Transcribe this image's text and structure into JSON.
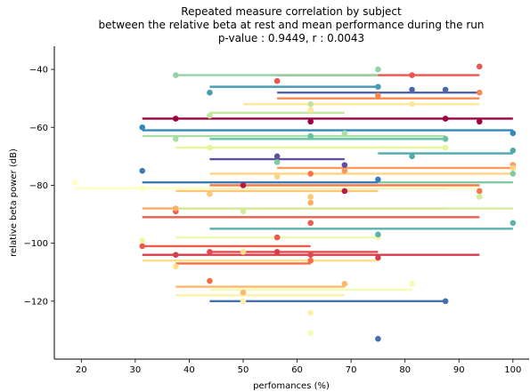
{
  "chart_data": {
    "type": "scatter",
    "title_lines": [
      "Repeated measure correlation by subject",
      "between the relative beta at rest and mean performance during the run",
      "p-value : 0.9449, r : 0.0043"
    ],
    "xlabel": "perfomances (%)",
    "ylabel": "relative beta power (dB)",
    "xlim": [
      15,
      103
    ],
    "ylim": [
      -140,
      -32
    ],
    "xticks": [
      20,
      30,
      40,
      50,
      60,
      70,
      80,
      90,
      100
    ],
    "yticks": [
      -120,
      -100,
      -80,
      -60,
      -40
    ],
    "grid": false,
    "legend": "none",
    "palette": "Spectral",
    "series": [
      {
        "color": "#9e0142",
        "line": {
          "x": [
            31.3,
            100
          ],
          "y": [
            -57,
            -57
          ]
        },
        "points": [
          {
            "x": 37.5,
            "y": -57
          },
          {
            "x": 62.5,
            "y": -58
          },
          {
            "x": 87.5,
            "y": -57
          },
          {
            "x": 93.8,
            "y": -58
          }
        ]
      },
      {
        "color": "#b71a46",
        "line": {
          "x": [
            43.8,
            87.5
          ],
          "y": [
            -81,
            -81
          ]
        },
        "points": [
          {
            "x": 50,
            "y": -80
          },
          {
            "x": 68.8,
            "y": -82
          }
        ]
      },
      {
        "color": "#d53e4f",
        "line": {
          "x": [
            31.3,
            93.8
          ],
          "y": [
            -104,
            -104
          ]
        },
        "points": [
          {
            "x": 37.5,
            "y": -104
          },
          {
            "x": 56.3,
            "y": -103
          },
          {
            "x": 75,
            "y": -105
          }
        ]
      },
      {
        "color": "#e04a4d",
        "line": {
          "x": [
            43.8,
            75
          ],
          "y": [
            -103,
            -103
          ]
        },
        "points": [
          {
            "x": 43.8,
            "y": -103
          },
          {
            "x": 62.5,
            "y": -104
          }
        ]
      },
      {
        "color": "#e8564d",
        "line": {
          "x": [
            56.3,
            93.8
          ],
          "y": [
            -42,
            -42
          ]
        },
        "points": [
          {
            "x": 56.3,
            "y": -44
          },
          {
            "x": 81.3,
            "y": -42
          },
          {
            "x": 93.8,
            "y": -39
          }
        ]
      },
      {
        "color": "#ea5e4d",
        "line": {
          "x": [
            31.3,
            93.8
          ],
          "y": [
            -91,
            -91
          ]
        },
        "points": [
          {
            "x": 37.5,
            "y": -89
          },
          {
            "x": 62.5,
            "y": -93
          }
        ]
      },
      {
        "color": "#e95c47",
        "line": {
          "x": [
            31.3,
            62.5
          ],
          "y": [
            -101,
            -101
          ]
        },
        "points": [
          {
            "x": 31.3,
            "y": -101
          },
          {
            "x": 56.3,
            "y": -98
          }
        ]
      },
      {
        "color": "#f46d43",
        "line": {
          "x": [
            37.5,
            62.5
          ],
          "y": [
            -107,
            -107
          ]
        },
        "points": [
          {
            "x": 43.8,
            "y": -113
          },
          {
            "x": 62.5,
            "y": -106
          }
        ]
      },
      {
        "color": "#f57748",
        "line": {
          "x": [
            43.8,
            93.8
          ],
          "y": [
            -80,
            -80
          ]
        },
        "points": [
          {
            "x": 62.5,
            "y": -76
          },
          {
            "x": 93.8,
            "y": -82
          }
        ]
      },
      {
        "color": "#f7864f",
        "line": {
          "x": [
            56.3,
            93.8
          ],
          "y": [
            -50,
            -50
          ]
        },
        "points": [
          {
            "x": 75,
            "y": -49
          },
          {
            "x": 93.8,
            "y": -48
          }
        ]
      },
      {
        "color": "#fb9a59",
        "line": {
          "x": [
            56.3,
            100
          ],
          "y": [
            -74,
            -74
          ]
        },
        "points": [
          {
            "x": 68.8,
            "y": -75
          },
          {
            "x": 100,
            "y": -73
          }
        ]
      },
      {
        "color": "#fdae61",
        "line": {
          "x": [
            31.3,
            87.5
          ],
          "y": [
            -88,
            -88
          ]
        },
        "points": [
          {
            "x": 37.5,
            "y": -88
          },
          {
            "x": 62.5,
            "y": -86
          }
        ]
      },
      {
        "color": "#fdb96a",
        "line": {
          "x": [
            37.5,
            68.8
          ],
          "y": [
            -115,
            -115
          ]
        },
        "points": [
          {
            "x": 50,
            "y": -117
          },
          {
            "x": 68.8,
            "y": -114
          }
        ]
      },
      {
        "color": "#fec877",
        "line": {
          "x": [
            37.5,
            75
          ],
          "y": [
            -82,
            -82
          ]
        },
        "points": [
          {
            "x": 43.8,
            "y": -83
          },
          {
            "x": 62.5,
            "y": -84
          }
        ]
      },
      {
        "color": "#fdd481",
        "line": {
          "x": [
            43.8,
            100
          ],
          "y": [
            -76,
            -76
          ]
        },
        "points": [
          {
            "x": 56.3,
            "y": -77
          },
          {
            "x": 100,
            "y": -74
          }
        ]
      },
      {
        "color": "#fee08b",
        "line": {
          "x": [
            31.3,
            75
          ],
          "y": [
            -106,
            -106
          ]
        },
        "points": [
          {
            "x": 37.5,
            "y": -108
          },
          {
            "x": 50,
            "y": -103
          }
        ]
      },
      {
        "color": "#fee89a",
        "line": {
          "x": [
            50,
            93.8
          ],
          "y": [
            -52,
            -52
          ]
        },
        "points": [
          {
            "x": 62.5,
            "y": -54
          },
          {
            "x": 81.3,
            "y": -52
          }
        ]
      },
      {
        "color": "#fff0a8",
        "line": {
          "x": [
            37.5,
            68.8
          ],
          "y": [
            -118,
            -118
          ]
        },
        "points": [
          {
            "x": 50,
            "y": -120
          },
          {
            "x": 62.5,
            "y": -124
          }
        ]
      },
      {
        "color": "#ffffbf",
        "line": {
          "x": [
            18.8,
            93.8
          ],
          "y": [
            -81,
            -81
          ]
        },
        "points": [
          {
            "x": 18.8,
            "y": -79
          },
          {
            "x": 31.3,
            "y": -81
          }
        ]
      },
      {
        "color": "#f6fbb2",
        "line": {
          "x": [
            43.8,
            81.3
          ],
          "y": [
            -116,
            -116
          ]
        },
        "points": [
          {
            "x": 62.5,
            "y": -131
          },
          {
            "x": 81.3,
            "y": -114
          }
        ]
      },
      {
        "color": "#eef8a8",
        "line": {
          "x": [
            37.5,
            75
          ],
          "y": [
            -98,
            -98
          ]
        },
        "points": [
          {
            "x": 31.3,
            "y": -99
          },
          {
            "x": 75,
            "y": -98
          }
        ]
      },
      {
        "color": "#e6f598",
        "line": {
          "x": [
            37.5,
            87.5
          ],
          "y": [
            -67,
            -67
          ]
        },
        "points": [
          {
            "x": 43.8,
            "y": -67
          },
          {
            "x": 87.5,
            "y": -67
          }
        ]
      },
      {
        "color": "#d3ed9c",
        "line": {
          "x": [
            37.5,
            100
          ],
          "y": [
            -88,
            -88
          ]
        },
        "points": [
          {
            "x": 50,
            "y": -89
          },
          {
            "x": 93.8,
            "y": -84
          }
        ]
      },
      {
        "color": "#c1e6a0",
        "line": {
          "x": [
            43.8,
            68.8
          ],
          "y": [
            -55,
            -55
          ]
        },
        "points": [
          {
            "x": 43.8,
            "y": -56
          },
          {
            "x": 62.5,
            "y": -52
          }
        ]
      },
      {
        "color": "#abdda4",
        "line": {
          "x": [
            31.3,
            87.5
          ],
          "y": [
            -63,
            -63
          ]
        },
        "points": [
          {
            "x": 37.5,
            "y": -64
          },
          {
            "x": 68.8,
            "y": -62
          }
        ]
      },
      {
        "color": "#93d2a4",
        "line": {
          "x": [
            37.5,
            75
          ],
          "y": [
            -42,
            -42
          ]
        },
        "points": [
          {
            "x": 37.5,
            "y": -42
          },
          {
            "x": 75,
            "y": -40
          }
        ]
      },
      {
        "color": "#7ecba4",
        "line": {
          "x": [
            43.8,
            100
          ],
          "y": [
            -79,
            -79
          ]
        },
        "points": [
          {
            "x": 56.3,
            "y": -72
          },
          {
            "x": 100,
            "y": -76
          }
        ]
      },
      {
        "color": "#66c2a5",
        "line": {
          "x": [
            43.8,
            87.5
          ],
          "y": [
            -64,
            -64
          ]
        },
        "points": [
          {
            "x": 62.5,
            "y": -63
          },
          {
            "x": 87.5,
            "y": -64
          }
        ]
      },
      {
        "color": "#5bb3a9",
        "line": {
          "x": [
            43.8,
            100
          ],
          "y": [
            -95,
            -95
          ]
        },
        "points": [
          {
            "x": 75,
            "y": -97
          },
          {
            "x": 100,
            "y": -93
          }
        ]
      },
      {
        "color": "#50a9af",
        "line": {
          "x": [
            75,
            100
          ],
          "y": [
            -69,
            -69
          ]
        },
        "points": [
          {
            "x": 81.3,
            "y": -70
          },
          {
            "x": 100,
            "y": -68
          }
        ]
      },
      {
        "color": "#4a9ab3",
        "line": {
          "x": [
            43.8,
            75
          ],
          "y": [
            -46,
            -46
          ]
        },
        "points": [
          {
            "x": 43.8,
            "y": -48
          },
          {
            "x": 75,
            "y": -46
          }
        ]
      },
      {
        "color": "#3288bd",
        "line": {
          "x": [
            31.3,
            100
          ],
          "y": [
            -61,
            -61
          ]
        },
        "points": [
          {
            "x": 31.3,
            "y": -60
          },
          {
            "x": 100,
            "y": -62
          }
        ]
      },
      {
        "color": "#3b7cb8",
        "line": {
          "x": [
            31.3,
            75
          ],
          "y": [
            -79,
            -79
          ]
        },
        "points": [
          {
            "x": 31.3,
            "y": -75
          },
          {
            "x": 75,
            "y": -78
          }
        ]
      },
      {
        "color": "#4270b3",
        "line": {
          "x": [
            43.8,
            87.5
          ],
          "y": [
            -120,
            -120
          ]
        },
        "points": [
          {
            "x": 75,
            "y": -133
          },
          {
            "x": 87.5,
            "y": -120
          }
        ]
      },
      {
        "color": "#4a64ad",
        "line": {
          "x": [
            56.3,
            93.8
          ],
          "y": [
            -48,
            -48
          ]
        },
        "points": [
          {
            "x": 81.3,
            "y": -47
          },
          {
            "x": 87.5,
            "y": -47
          }
        ]
      },
      {
        "color": "#5e4fa2",
        "line": {
          "x": [
            43.8,
            68.8
          ],
          "y": [
            -71,
            -71
          ]
        },
        "points": [
          {
            "x": 56.3,
            "y": -70
          },
          {
            "x": 68.8,
            "y": -73
          }
        ]
      }
    ]
  }
}
